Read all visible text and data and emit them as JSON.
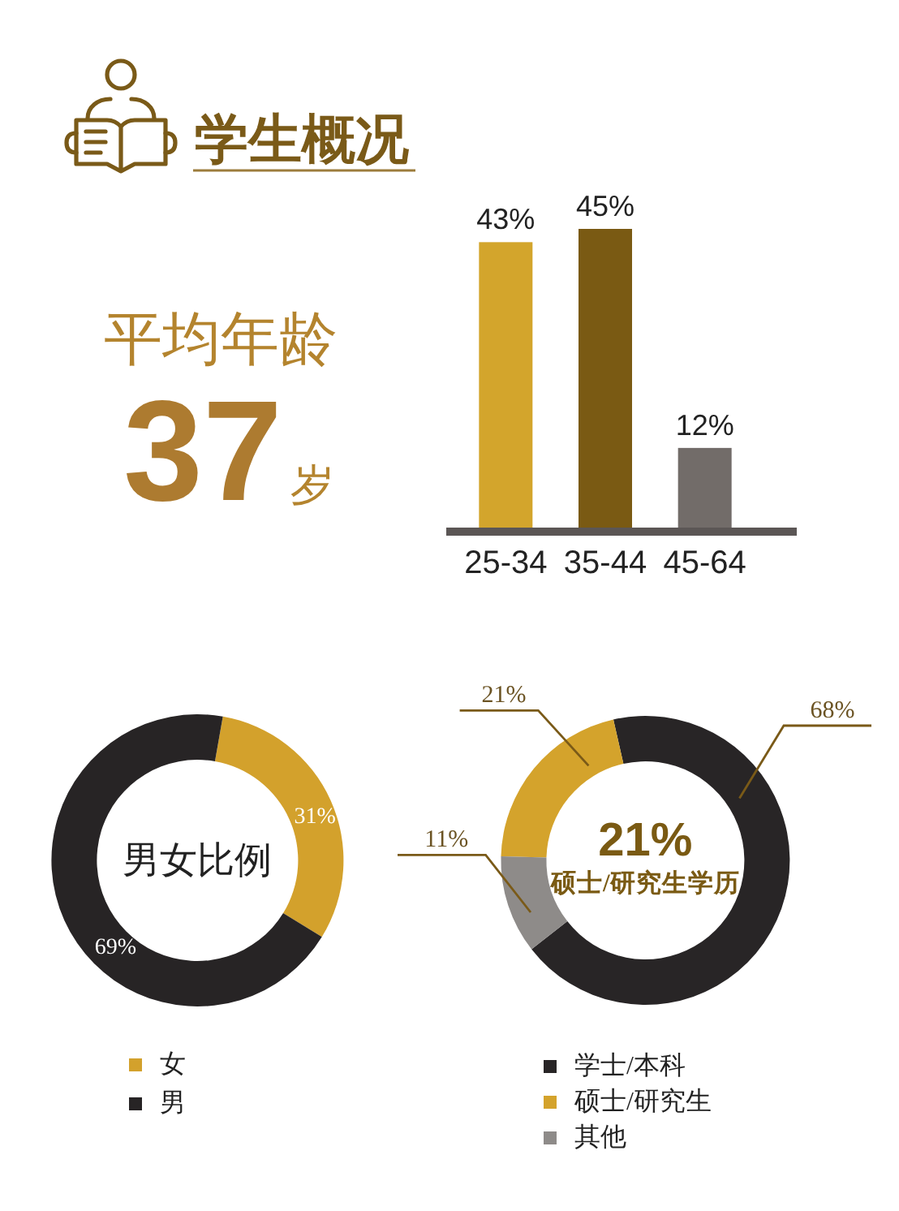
{
  "chart_data": [
    {
      "type": "other",
      "title": "学生概况",
      "annotations": [
        "平均年龄",
        "37",
        "岁"
      ]
    },
    {
      "type": "bar",
      "categories": [
        "25-34",
        "35-44",
        "45-64"
      ],
      "values": [
        43,
        45,
        12
      ],
      "colors": [
        "#D3A52C",
        "#7A5A13",
        "#726C69"
      ],
      "value_labels": [
        "43%",
        "45%",
        "12%"
      ]
    },
    {
      "type": "donut",
      "title": "男女比例",
      "categories": [
        "女",
        "男"
      ],
      "values": [
        31,
        69
      ],
      "colors": [
        "#D3A12C",
        "#272425"
      ],
      "value_labels": [
        "31%",
        "69%"
      ],
      "legend": "bottom"
    },
    {
      "type": "donut",
      "categories": [
        "学士/本科",
        "硕士/研究生",
        "其他"
      ],
      "values": [
        68,
        21,
        11
      ],
      "colors": [
        "#282526",
        "#D4A32C",
        "#8E8B89"
      ],
      "value_labels": [
        "68%",
        "21%",
        "11%"
      ],
      "annotations": [
        "21%",
        "硕士/研究生学历"
      ],
      "legend": "bottom"
    }
  ]
}
